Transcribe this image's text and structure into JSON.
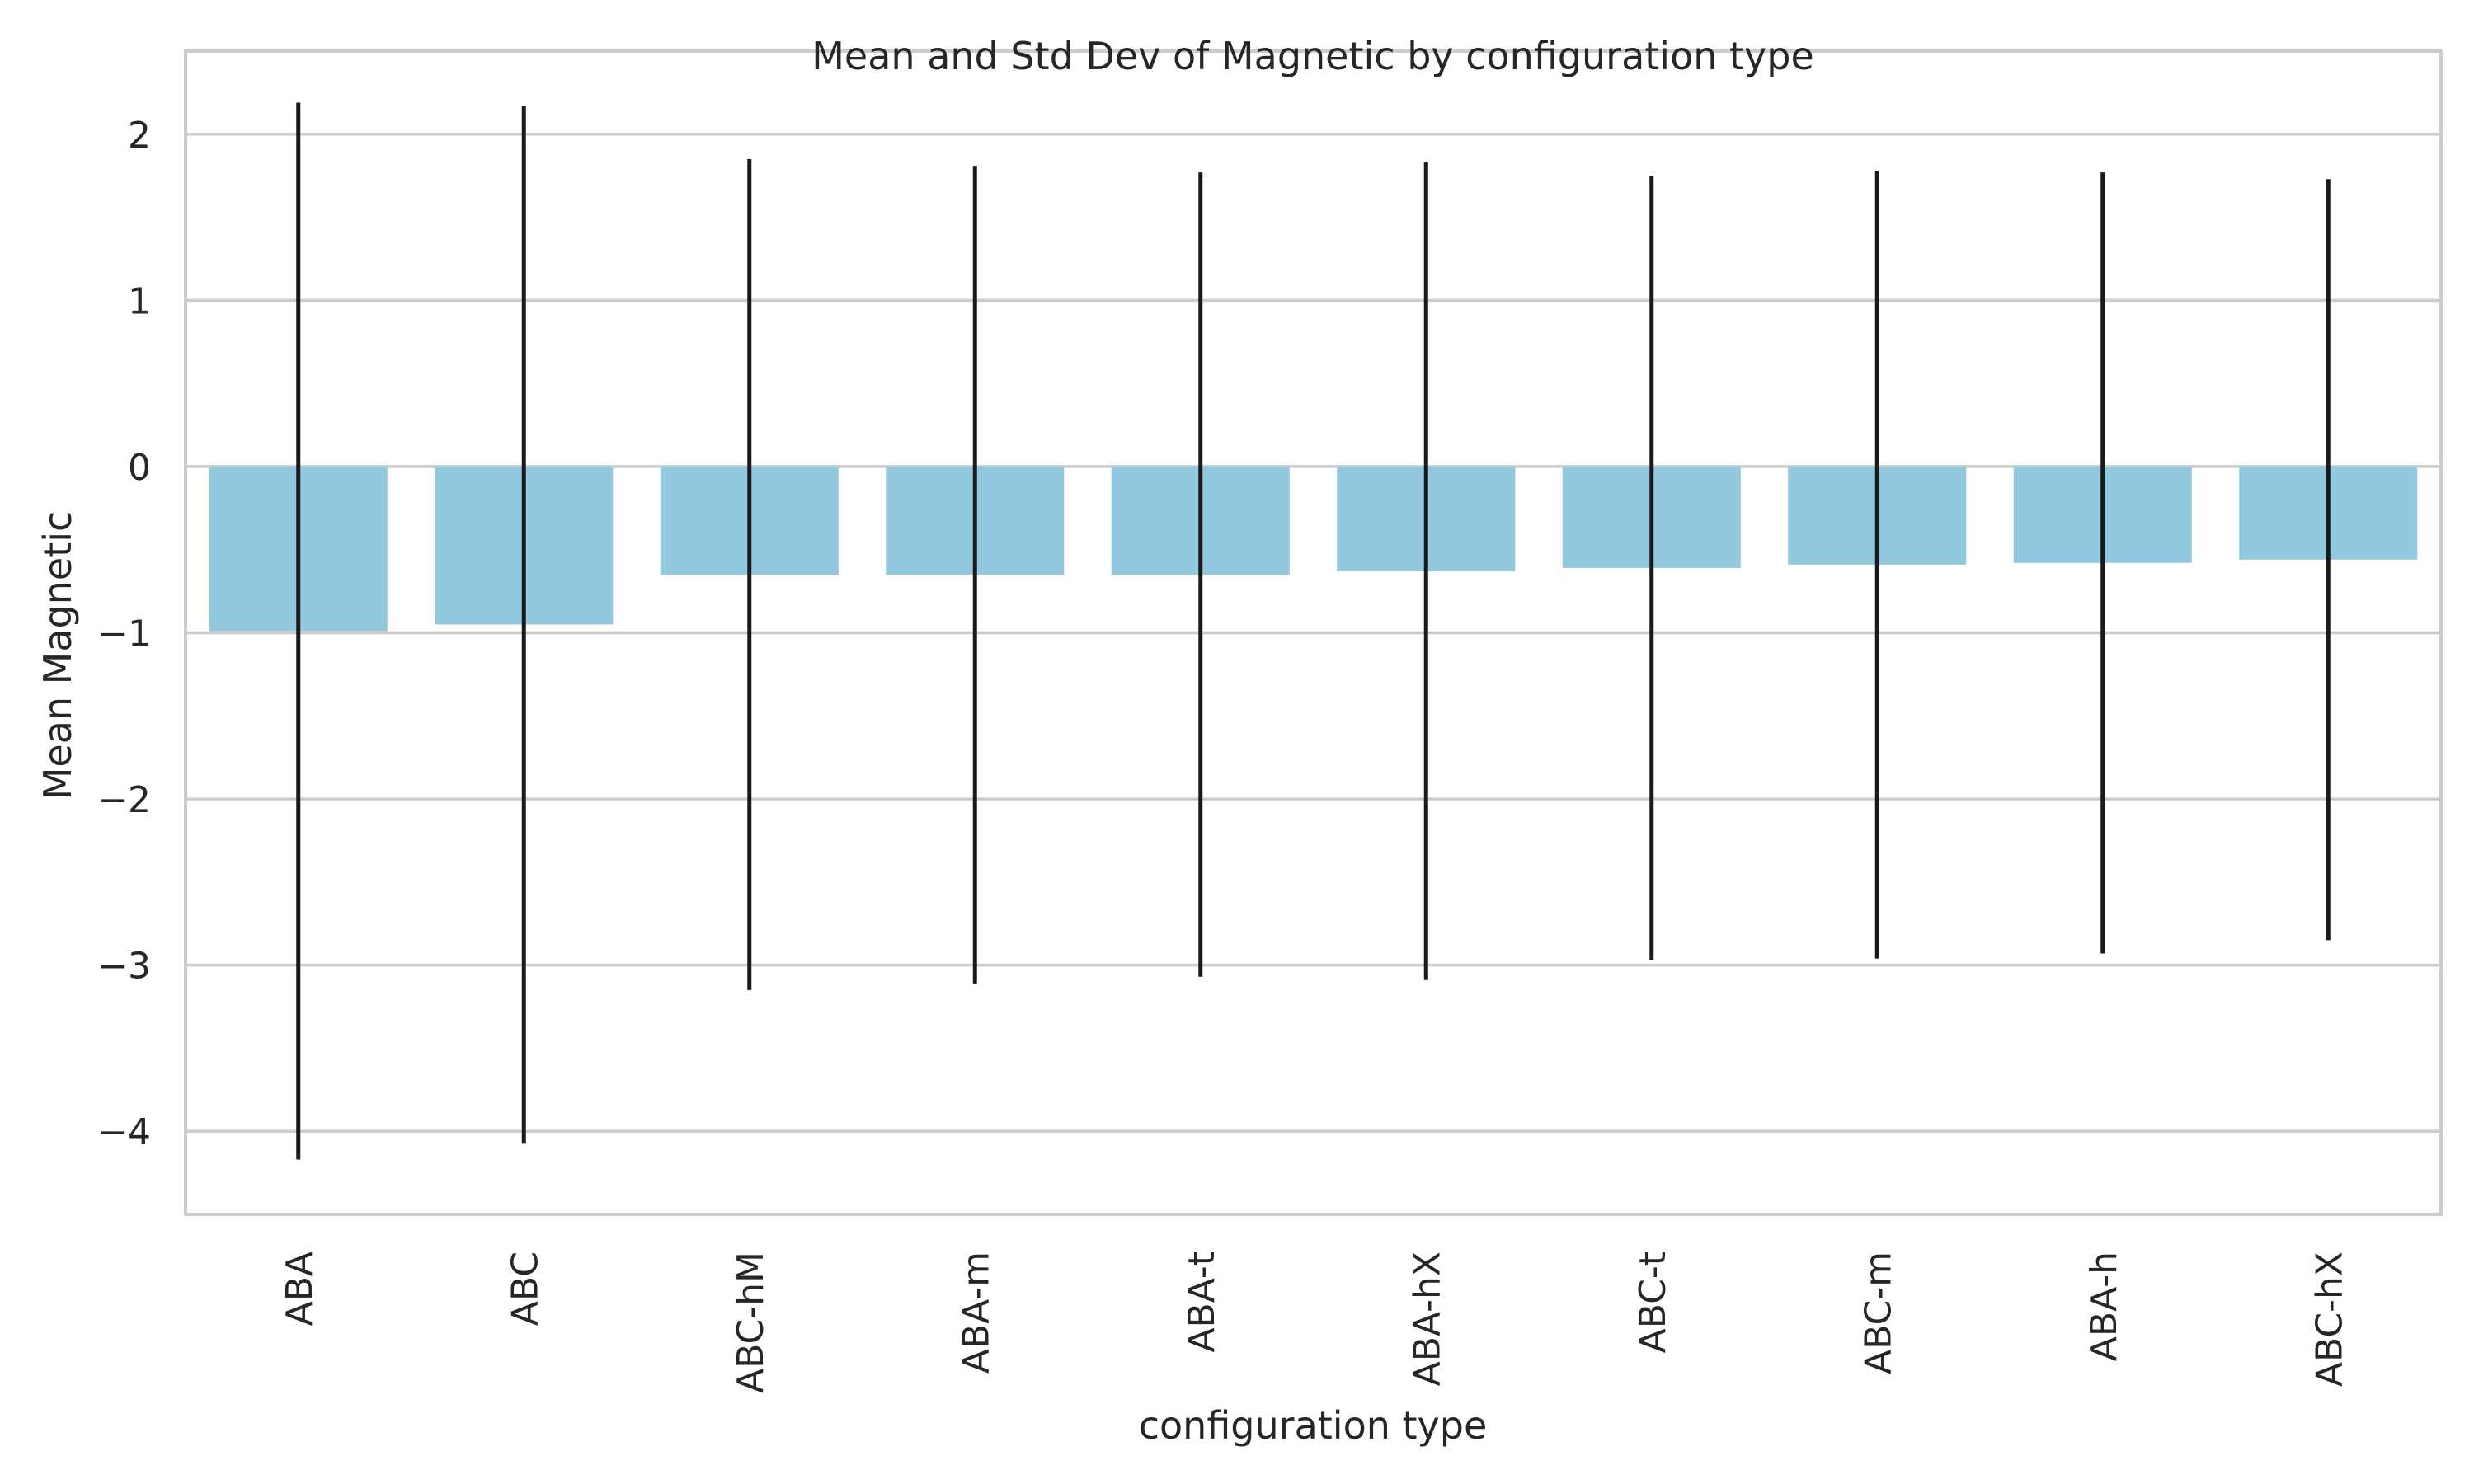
{
  "chart_data": {
    "type": "bar",
    "title": "Mean and Std Dev of Magnetic by configuration type",
    "xlabel": "configuration type",
    "ylabel": "Mean Magnetic",
    "categories": [
      "ABA",
      "ABC",
      "ABC-hM",
      "ABA-m",
      "ABA-t",
      "ABA-hX",
      "ABC-t",
      "ABC-m",
      "ABA-h",
      "ABC-hX"
    ],
    "values": [
      -0.99,
      -0.95,
      -0.65,
      -0.65,
      -0.65,
      -0.63,
      -0.61,
      -0.59,
      -0.58,
      -0.56
    ],
    "std": [
      3.18,
      3.12,
      2.5,
      2.46,
      2.42,
      2.46,
      2.36,
      2.37,
      2.35,
      2.29
    ],
    "ylim": [
      -4.5,
      2.5
    ],
    "yticks": [
      2,
      1,
      0,
      -1,
      -2,
      -3,
      -4
    ],
    "ytick_labels": [
      "2",
      "1",
      "0",
      "−1",
      "−2",
      "−3",
      "−4"
    ],
    "grid": true,
    "colors": {
      "bar": "#92c9df",
      "error_bar": "#1a1a1a",
      "grid": "#cccccc",
      "axes_edge": "#cccccc",
      "background": "#ffffff"
    }
  }
}
